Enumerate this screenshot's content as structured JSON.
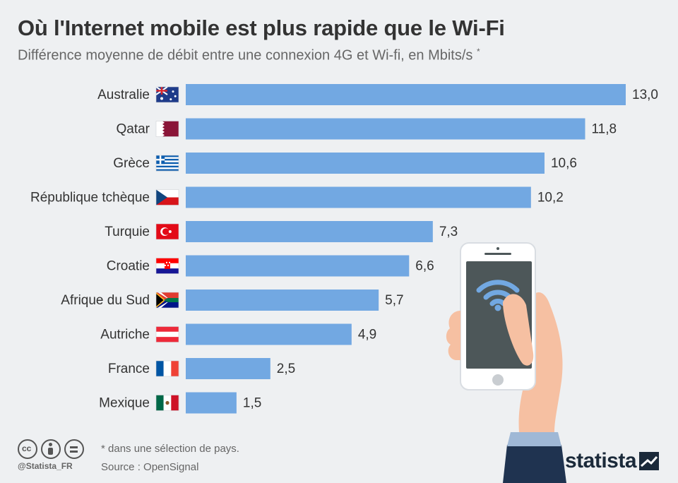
{
  "title": "Où l'Internet mobile est plus rapide que le Wi-Fi",
  "subtitle": "Différence moyenne de débit entre une connexion 4G et Wi-fi, en Mbits/s",
  "subtitle_mark": "*",
  "footnote": "* dans une sélection de pays.",
  "source": "Source : OpenSignal",
  "handle": "@Statista_FR",
  "brand": "statista",
  "colors": {
    "bar": "#72a8e2",
    "background": "#eef0f2",
    "text": "#333333"
  },
  "chart_data": {
    "type": "bar",
    "orientation": "horizontal",
    "categories": [
      "Australie",
      "Qatar",
      "Grèce",
      "République tchèque",
      "Turquie",
      "Croatie",
      "Afrique du Sud",
      "Autriche",
      "France",
      "Mexique"
    ],
    "values": [
      13.0,
      11.8,
      10.6,
      10.2,
      7.3,
      6.6,
      5.7,
      4.9,
      2.5,
      1.5
    ],
    "value_labels": [
      "13,0",
      "11,8",
      "10,6",
      "10,2",
      "7,3",
      "6,6",
      "5,7",
      "4,9",
      "2,5",
      "1,5"
    ],
    "flags": [
      "australia-flag",
      "qatar-flag",
      "greece-flag",
      "czech-flag",
      "turkey-flag",
      "croatia-flag",
      "south-africa-flag",
      "austria-flag",
      "france-flag",
      "mexico-flag"
    ],
    "xlim": [
      0,
      13.0
    ],
    "grid": false,
    "legend": "none"
  }
}
